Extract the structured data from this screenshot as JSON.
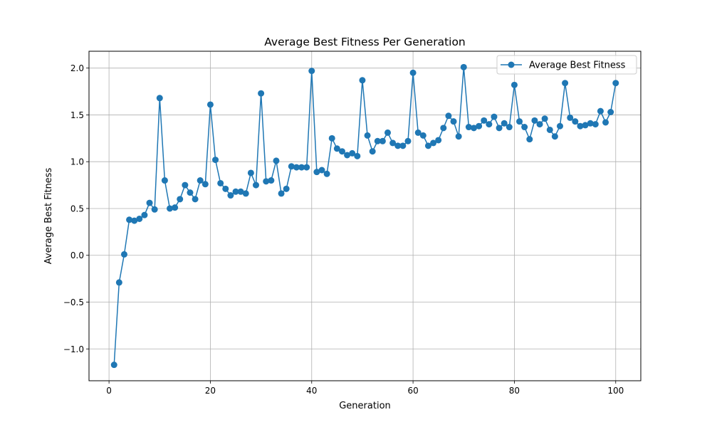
{
  "chart_data": {
    "type": "line",
    "title": "Average Best Fitness Per Generation",
    "xlabel": "Generation",
    "ylabel": "Average Best Fitness",
    "xlim": [
      -3.95,
      104.95
    ],
    "ylim": [
      -1.34,
      2.18
    ],
    "xticks": [
      0,
      20,
      40,
      60,
      80,
      100
    ],
    "yticks": [
      -1.0,
      -0.5,
      0.0,
      0.5,
      1.0,
      1.5,
      2.0
    ],
    "ytick_labels": [
      "−1.0",
      "−0.5",
      "0.0",
      "0.5",
      "1.0",
      "1.5",
      "2.0"
    ],
    "grid": true,
    "legend_position": "top-right",
    "series": [
      {
        "name": "Average Best Fitness",
        "color": "#1f77b4",
        "marker": "circle",
        "x": [
          1,
          2,
          3,
          4,
          5,
          6,
          7,
          8,
          9,
          10,
          11,
          12,
          13,
          14,
          15,
          16,
          17,
          18,
          19,
          20,
          21,
          22,
          23,
          24,
          25,
          26,
          27,
          28,
          29,
          30,
          31,
          32,
          33,
          34,
          35,
          36,
          37,
          38,
          39,
          40,
          41,
          42,
          43,
          44,
          45,
          46,
          47,
          48,
          49,
          50,
          51,
          52,
          53,
          54,
          55,
          56,
          57,
          58,
          59,
          60,
          61,
          62,
          63,
          64,
          65,
          66,
          67,
          68,
          69,
          70,
          71,
          72,
          73,
          74,
          75,
          76,
          77,
          78,
          79,
          80,
          81,
          82,
          83,
          84,
          85,
          86,
          87,
          88,
          89,
          90,
          91,
          92,
          93,
          94,
          95,
          96,
          97,
          98,
          99,
          100
        ],
        "values": [
          -1.17,
          -0.29,
          0.01,
          0.38,
          0.37,
          0.39,
          0.43,
          0.56,
          0.49,
          1.68,
          0.8,
          0.5,
          0.51,
          0.6,
          0.75,
          0.67,
          0.6,
          0.8,
          0.76,
          1.61,
          1.02,
          0.77,
          0.71,
          0.64,
          0.68,
          0.68,
          0.66,
          0.88,
          0.75,
          1.73,
          0.79,
          0.8,
          1.01,
          0.66,
          0.71,
          0.95,
          0.94,
          0.94,
          0.94,
          1.97,
          0.89,
          0.91,
          0.87,
          1.25,
          1.14,
          1.11,
          1.07,
          1.09,
          1.06,
          1.87,
          1.28,
          1.11,
          1.22,
          1.22,
          1.31,
          1.2,
          1.17,
          1.17,
          1.22,
          1.95,
          1.31,
          1.28,
          1.17,
          1.2,
          1.23,
          1.36,
          1.49,
          1.43,
          1.27,
          2.01,
          1.37,
          1.36,
          1.38,
          1.44,
          1.4,
          1.48,
          1.36,
          1.41,
          1.37,
          1.82,
          1.43,
          1.37,
          1.24,
          1.44,
          1.4,
          1.46,
          1.34,
          1.27,
          1.38,
          1.84,
          1.47,
          1.43,
          1.38,
          1.39,
          1.41,
          1.4,
          1.54,
          1.42,
          1.53,
          1.84
        ]
      }
    ]
  }
}
